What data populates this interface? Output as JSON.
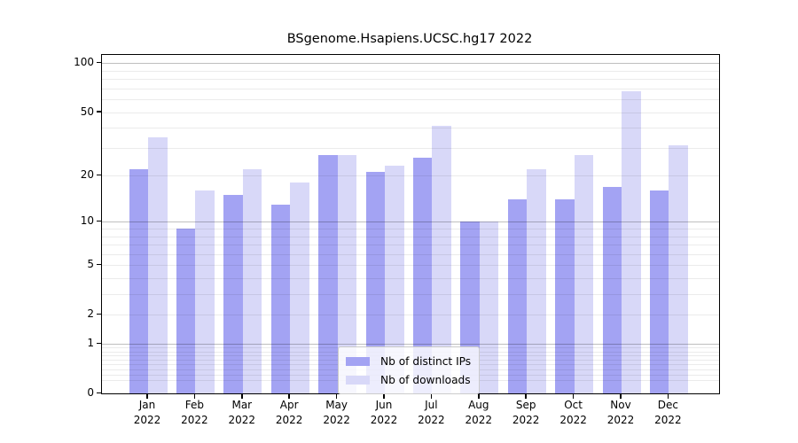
{
  "chart_data": {
    "type": "bar",
    "title": "BSgenome.Hsapiens.UCSC.hg17 2022",
    "categories": [
      "Jan",
      "Feb",
      "Mar",
      "Apr",
      "May",
      "Jun",
      "Jul",
      "Aug",
      "Sep",
      "Oct",
      "Nov",
      "Dec"
    ],
    "year_label": "2022",
    "series": [
      {
        "name": "Nb of distinct IPs",
        "color": "#a3a3f3",
        "values": [
          22,
          9,
          15,
          13,
          27,
          21,
          26,
          10,
          14,
          14,
          17,
          16
        ]
      },
      {
        "name": "Nb of downloads",
        "color": "#d8d8f8",
        "values": [
          35,
          16,
          22,
          18,
          27,
          23,
          41,
          10,
          22,
          27,
          67,
          31
        ]
      }
    ],
    "xlabel": "",
    "ylabel": "",
    "y_scale": "log10(value+1)",
    "ylim": [
      0,
      112
    ],
    "y_tick_values": [
      0,
      1,
      2,
      5,
      10,
      20,
      50,
      100
    ],
    "y_tick_labels": [
      "0",
      "1",
      "2",
      "5",
      "10",
      "20",
      "50",
      "100"
    ],
    "major_grid_values": [
      1,
      10,
      100
    ],
    "minor_grid_values": [
      0.2,
      0.3,
      0.4,
      0.5,
      0.6,
      0.7,
      0.8,
      0.9,
      2,
      3,
      4,
      5,
      6,
      7,
      8,
      9,
      20,
      30,
      40,
      50,
      60,
      70,
      80,
      90
    ],
    "grid": "on",
    "legend_position": "inside lower-center"
  }
}
